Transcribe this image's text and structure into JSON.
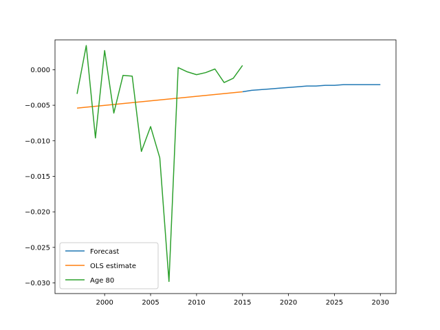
{
  "chart_data": {
    "type": "line",
    "title": "",
    "xlabel": "",
    "ylabel": "",
    "xlim": [
      1994.6,
      2031.7
    ],
    "ylim": [
      -0.0315,
      0.0042
    ],
    "xticks": [
      2000,
      2005,
      2010,
      2015,
      2020,
      2025,
      2030
    ],
    "yticks": [
      0.0,
      -0.005,
      -0.01,
      -0.015,
      -0.02,
      -0.025,
      -0.03
    ],
    "ytick_labels": [
      "0.000",
      "−0.005",
      "−0.010",
      "−0.015",
      "−0.020",
      "−0.025",
      "−0.030"
    ],
    "grid": false,
    "legend_position": "lower-left",
    "series": [
      {
        "name": "Forecast",
        "color": "#1f77b4",
        "x": [
          2015,
          2016,
          2017,
          2018,
          2019,
          2020,
          2021,
          2022,
          2023,
          2024,
          2025,
          2026,
          2027,
          2028,
          2029,
          2030
        ],
        "y": [
          -0.0031,
          -0.0029,
          -0.0028,
          -0.0027,
          -0.0026,
          -0.0025,
          -0.0024,
          -0.0023,
          -0.0023,
          -0.0022,
          -0.0022,
          -0.0021,
          -0.0021,
          -0.0021,
          -0.0021,
          -0.0021
        ]
      },
      {
        "name": "OLS estimate",
        "color": "#ff7f0e",
        "x": [
          1997,
          2015
        ],
        "y": [
          -0.0054,
          -0.0031
        ]
      },
      {
        "name": "Age 80",
        "color": "#2ca02c",
        "x": [
          1997,
          1998,
          1999,
          2000,
          2001,
          2002,
          2003,
          2004,
          2005,
          2006,
          2007,
          2008,
          2009,
          2010,
          2011,
          2012,
          2013,
          2014,
          2015
        ],
        "y": [
          -0.0034,
          0.0034,
          -0.0096,
          0.0027,
          -0.0061,
          -0.0008,
          -0.0009,
          -0.0115,
          -0.008,
          -0.0124,
          -0.0298,
          0.0003,
          -0.0003,
          -0.0007,
          -0.0004,
          0.0001,
          -0.0018,
          -0.0012,
          0.0006
        ]
      }
    ]
  }
}
